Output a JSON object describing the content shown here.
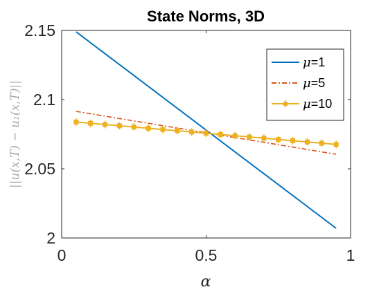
{
  "chart_data": {
    "type": "line",
    "title": "State Norms, 3D",
    "xlabel": "α",
    "ylabel": "||u(x,T) − u₁(x,T)||",
    "xlim": [
      0,
      1
    ],
    "ylim": [
      2,
      2.15
    ],
    "xticks": [
      0,
      0.5,
      1
    ],
    "xtick_labels": [
      "0",
      "0.5",
      "1"
    ],
    "yticks": [
      2,
      2.05,
      2.1,
      2.15
    ],
    "ytick_labels": [
      "2",
      "2.05",
      "2.1",
      "2.15"
    ],
    "grid": false,
    "legend_position": "top-right",
    "series": [
      {
        "name": "μ=1",
        "legend_symbol": "μ",
        "legend_value": "=1",
        "color": "#0072BD",
        "line_style": "solid",
        "marker": "none",
        "x": [
          0.05,
          0.95
        ],
        "y": [
          2.149,
          2.007
        ]
      },
      {
        "name": "μ=5",
        "legend_symbol": "μ",
        "legend_value": "=5",
        "color": "#D95319",
        "line_style": "dashdot",
        "marker": "none",
        "x": [
          0.05,
          0.95
        ],
        "y": [
          2.0915,
          2.0605
        ]
      },
      {
        "name": "μ=10",
        "legend_symbol": "μ",
        "legend_value": "=10",
        "color": "#EDB120",
        "line_style": "solid",
        "marker": "square",
        "x": [
          0.05,
          0.1,
          0.15,
          0.2,
          0.25,
          0.3,
          0.35,
          0.4,
          0.45,
          0.5,
          0.55,
          0.6,
          0.65,
          0.7,
          0.75,
          0.8,
          0.85,
          0.9,
          0.95
        ],
        "y": [
          2.0838,
          2.0829,
          2.082,
          2.0811,
          2.0802,
          2.0793,
          2.0784,
          2.0775,
          2.0766,
          2.0757,
          2.0748,
          2.0739,
          2.073,
          2.0721,
          2.0712,
          2.0703,
          2.0694,
          2.0685,
          2.0676
        ]
      }
    ]
  }
}
